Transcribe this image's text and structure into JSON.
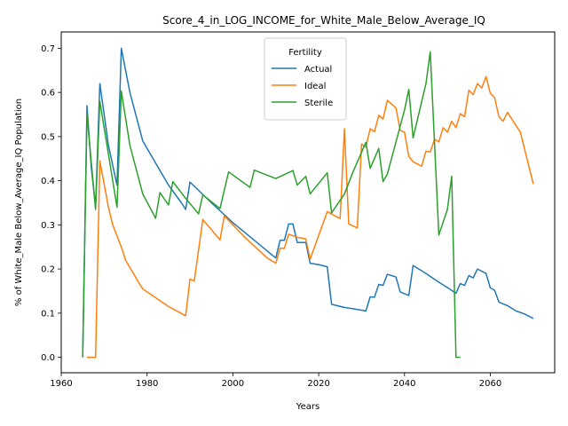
{
  "chart_data": {
    "type": "line",
    "title": "Score_4_in_LOG_INCOME_for_White_Male_Below_Average_IQ",
    "xlabel": "Years",
    "ylabel": "% of White_Male Below_Average_IQ Population",
    "xlim": [
      1960,
      2075
    ],
    "ylim": [
      -0.035,
      0.737
    ],
    "xticks": [
      1960,
      1980,
      2000,
      2020,
      2040,
      2060
    ],
    "yticks": [
      0.0,
      0.1,
      0.2,
      0.3,
      0.4,
      0.5,
      0.6,
      0.7
    ],
    "ytick_labels": [
      "0.0",
      "0.1",
      "0.2",
      "0.3",
      "0.4",
      "0.5",
      "0.6",
      "0.7"
    ],
    "grid": false,
    "legend": {
      "title": "Fertility",
      "position": "upper-center"
    },
    "series": [
      {
        "name": "Actual",
        "color": "#1f77b4",
        "points": [
          [
            1965,
            0.0
          ],
          [
            1966,
            0.57
          ],
          [
            1967,
            0.43
          ],
          [
            1968,
            0.34
          ],
          [
            1969,
            0.62
          ],
          [
            1970,
            0.55
          ],
          [
            1971,
            0.48
          ],
          [
            1973,
            0.39
          ],
          [
            1974,
            0.7
          ],
          [
            1976,
            0.6
          ],
          [
            1979,
            0.49
          ],
          [
            1982,
            0.44
          ],
          [
            1985,
            0.39
          ],
          [
            1988,
            0.35
          ],
          [
            1989,
            0.335
          ],
          [
            1990,
            0.397
          ],
          [
            1995,
            0.35
          ],
          [
            2000,
            0.305
          ],
          [
            2005,
            0.265
          ],
          [
            2010,
            0.225
          ],
          [
            2011,
            0.265
          ],
          [
            2012,
            0.265
          ],
          [
            2013,
            0.302
          ],
          [
            2014,
            0.302
          ],
          [
            2015,
            0.26
          ],
          [
            2017,
            0.26
          ],
          [
            2018,
            0.213
          ],
          [
            2020,
            0.21
          ],
          [
            2022,
            0.205
          ],
          [
            2023,
            0.12
          ],
          [
            2026,
            0.113
          ],
          [
            2028,
            0.11
          ],
          [
            2031,
            0.105
          ],
          [
            2032,
            0.137
          ],
          [
            2033,
            0.136
          ],
          [
            2034,
            0.165
          ],
          [
            2035,
            0.163
          ],
          [
            2036,
            0.188
          ],
          [
            2038,
            0.182
          ],
          [
            2039,
            0.148
          ],
          [
            2041,
            0.14
          ],
          [
            2042,
            0.208
          ],
          [
            2045,
            0.19
          ],
          [
            2048,
            0.17
          ],
          [
            2050,
            0.158
          ],
          [
            2052,
            0.145
          ],
          [
            2053,
            0.167
          ],
          [
            2054,
            0.163
          ],
          [
            2055,
            0.185
          ],
          [
            2056,
            0.18
          ],
          [
            2057,
            0.2
          ],
          [
            2059,
            0.19
          ],
          [
            2060,
            0.157
          ],
          [
            2061,
            0.152
          ],
          [
            2062,
            0.125
          ],
          [
            2064,
            0.117
          ],
          [
            2066,
            0.105
          ],
          [
            2068,
            0.098
          ],
          [
            2070,
            0.088
          ]
        ]
      },
      {
        "name": "Ideal",
        "color": "#ff7f0e",
        "points": [
          [
            1966,
            0.0
          ],
          [
            1968,
            0.0
          ],
          [
            1969,
            0.445
          ],
          [
            1971,
            0.34
          ],
          [
            1972,
            0.3
          ],
          [
            1974,
            0.25
          ],
          [
            1975,
            0.22
          ],
          [
            1978,
            0.17
          ],
          [
            1979,
            0.155
          ],
          [
            1982,
            0.135
          ],
          [
            1985,
            0.115
          ],
          [
            1989,
            0.094
          ],
          [
            1990,
            0.177
          ],
          [
            1991,
            0.173
          ],
          [
            1993,
            0.312
          ],
          [
            1997,
            0.266
          ],
          [
            1998,
            0.32
          ],
          [
            2003,
            0.27
          ],
          [
            2008,
            0.225
          ],
          [
            2010,
            0.213
          ],
          [
            2011,
            0.247
          ],
          [
            2012,
            0.247
          ],
          [
            2013,
            0.279
          ],
          [
            2015,
            0.272
          ],
          [
            2017,
            0.268
          ],
          [
            2018,
            0.222
          ],
          [
            2022,
            0.33
          ],
          [
            2025,
            0.314
          ],
          [
            2026,
            0.518
          ],
          [
            2027,
            0.302
          ],
          [
            2029,
            0.293
          ],
          [
            2030,
            0.483
          ],
          [
            2031,
            0.476
          ],
          [
            2032,
            0.518
          ],
          [
            2033,
            0.511
          ],
          [
            2034,
            0.548
          ],
          [
            2035,
            0.54
          ],
          [
            2036,
            0.582
          ],
          [
            2038,
            0.565
          ],
          [
            2039,
            0.514
          ],
          [
            2040,
            0.51
          ],
          [
            2041,
            0.455
          ],
          [
            2042,
            0.443
          ],
          [
            2044,
            0.433
          ],
          [
            2045,
            0.467
          ],
          [
            2046,
            0.465
          ],
          [
            2047,
            0.494
          ],
          [
            2048,
            0.488
          ],
          [
            2049,
            0.52
          ],
          [
            2050,
            0.51
          ],
          [
            2051,
            0.535
          ],
          [
            2052,
            0.52
          ],
          [
            2053,
            0.552
          ],
          [
            2054,
            0.545
          ],
          [
            2055,
            0.605
          ],
          [
            2056,
            0.595
          ],
          [
            2057,
            0.62
          ],
          [
            2058,
            0.61
          ],
          [
            2059,
            0.636
          ],
          [
            2060,
            0.598
          ],
          [
            2061,
            0.588
          ],
          [
            2062,
            0.545
          ],
          [
            2063,
            0.535
          ],
          [
            2064,
            0.555
          ],
          [
            2067,
            0.51
          ],
          [
            2070,
            0.393
          ]
        ]
      },
      {
        "name": "Sterile",
        "color": "#2ca02c",
        "points": [
          [
            1965,
            0.0
          ],
          [
            1966,
            0.55
          ],
          [
            1968,
            0.335
          ],
          [
            1969,
            0.58
          ],
          [
            1973,
            0.34
          ],
          [
            1974,
            0.603
          ],
          [
            1976,
            0.48
          ],
          [
            1979,
            0.37
          ],
          [
            1982,
            0.315
          ],
          [
            1983,
            0.373
          ],
          [
            1985,
            0.345
          ],
          [
            1986,
            0.398
          ],
          [
            1989,
            0.36
          ],
          [
            1992,
            0.325
          ],
          [
            1993,
            0.368
          ],
          [
            1997,
            0.337
          ],
          [
            1999,
            0.42
          ],
          [
            2004,
            0.385
          ],
          [
            2005,
            0.424
          ],
          [
            2010,
            0.405
          ],
          [
            2014,
            0.423
          ],
          [
            2015,
            0.39
          ],
          [
            2017,
            0.41
          ],
          [
            2018,
            0.37
          ],
          [
            2022,
            0.418
          ],
          [
            2023,
            0.327
          ],
          [
            2026,
            0.37
          ],
          [
            2028,
            0.42
          ],
          [
            2031,
            0.487
          ],
          [
            2032,
            0.428
          ],
          [
            2034,
            0.473
          ],
          [
            2035,
            0.398
          ],
          [
            2036,
            0.415
          ],
          [
            2040,
            0.56
          ],
          [
            2041,
            0.607
          ],
          [
            2042,
            0.497
          ],
          [
            2045,
            0.62
          ],
          [
            2046,
            0.692
          ],
          [
            2048,
            0.277
          ],
          [
            2050,
            0.335
          ],
          [
            2051,
            0.41
          ],
          [
            2052,
            0.0
          ],
          [
            2053,
            0.0
          ]
        ]
      }
    ]
  }
}
